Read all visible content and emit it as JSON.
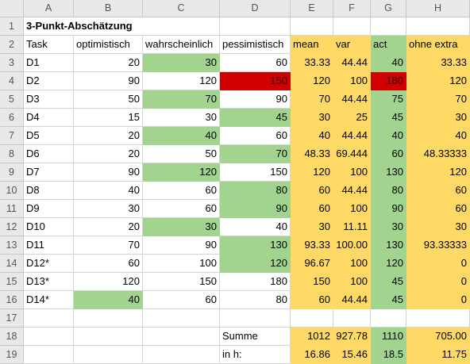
{
  "colors": {
    "green": "#a3d48f",
    "yellow": "#ffd966",
    "red": "#d00000"
  },
  "columns": [
    "A",
    "B",
    "C",
    "D",
    "E",
    "F",
    "G",
    "H"
  ],
  "rows": [
    {
      "n": "1",
      "cells": [
        "3-Punkt-Abschätzung",
        "",
        "",
        "",
        "",
        "",
        "",
        ""
      ]
    },
    {
      "n": "2",
      "cells": [
        "Task",
        "optimistisch",
        "wahrscheinlich",
        "pessimistisch",
        "mean",
        "var",
        "act",
        "ohne extra"
      ]
    },
    {
      "n": "3",
      "cells": [
        "D1",
        "20",
        "30",
        "60",
        "33.33",
        "44.44",
        "40",
        "33.33"
      ]
    },
    {
      "n": "4",
      "cells": [
        "D2",
        "90",
        "120",
        "150",
        "120",
        "100",
        "180",
        "120"
      ]
    },
    {
      "n": "5",
      "cells": [
        "D3",
        "50",
        "70",
        "90",
        "70",
        "44.44",
        "75",
        "70"
      ]
    },
    {
      "n": "6",
      "cells": [
        "D4",
        "15",
        "30",
        "45",
        "30",
        "25",
        "45",
        "30"
      ]
    },
    {
      "n": "7",
      "cells": [
        "D5",
        "20",
        "40",
        "60",
        "40",
        "44.44",
        "40",
        "40"
      ]
    },
    {
      "n": "8",
      "cells": [
        "D6",
        "20",
        "50",
        "70",
        "48.33",
        "69.444",
        "60",
        "48.33333"
      ]
    },
    {
      "n": "9",
      "cells": [
        "D7",
        "90",
        "120",
        "150",
        "120",
        "100",
        "130",
        "120"
      ]
    },
    {
      "n": "10",
      "cells": [
        "D8",
        "40",
        "60",
        "80",
        "60",
        "44.44",
        "80",
        "60"
      ]
    },
    {
      "n": "11",
      "cells": [
        "D9",
        "30",
        "60",
        "90",
        "60",
        "100",
        "90",
        "60"
      ]
    },
    {
      "n": "12",
      "cells": [
        "D10",
        "20",
        "30",
        "40",
        "30",
        "11.11",
        "30",
        "30"
      ]
    },
    {
      "n": "13",
      "cells": [
        "D11",
        "70",
        "90",
        "130",
        "93.33",
        "100.00",
        "130",
        "93.33333"
      ]
    },
    {
      "n": "14",
      "cells": [
        "D12*",
        "60",
        "100",
        "120",
        "96.67",
        "100",
        "120",
        "0"
      ]
    },
    {
      "n": "15",
      "cells": [
        "D13*",
        "120",
        "150",
        "180",
        "150",
        "100",
        "45",
        "0"
      ]
    },
    {
      "n": "16",
      "cells": [
        "D14*",
        "40",
        "60",
        "80",
        "60",
        "44.44",
        "45",
        "0"
      ]
    },
    {
      "n": "17",
      "cells": [
        "",
        "",
        "",
        "",
        "",
        "",
        "",
        ""
      ]
    },
    {
      "n": "18",
      "cells": [
        "",
        "",
        "",
        "Summe",
        "1012",
        "927.78",
        "1110",
        "705.00"
      ]
    },
    {
      "n": "19",
      "cells": [
        "",
        "",
        "",
        "in h:",
        "16.86",
        "15.46",
        "18.5",
        "11.75"
      ]
    }
  ],
  "fills": [
    [
      "",
      "",
      "",
      "",
      "",
      "",
      "",
      ""
    ],
    [
      "",
      "",
      "",
      "",
      "y",
      "y",
      "g",
      "y"
    ],
    [
      "",
      "",
      "g",
      "",
      "y",
      "y",
      "g",
      "y"
    ],
    [
      "",
      "",
      "",
      "r",
      "y",
      "y",
      "r",
      "y"
    ],
    [
      "",
      "",
      "g",
      "",
      "y",
      "y",
      "g",
      "y"
    ],
    [
      "",
      "",
      "",
      "g",
      "y",
      "y",
      "g",
      "y"
    ],
    [
      "",
      "",
      "g",
      "",
      "y",
      "y",
      "g",
      "y"
    ],
    [
      "",
      "",
      "",
      "g",
      "y",
      "y",
      "g",
      "y"
    ],
    [
      "",
      "",
      "g",
      "",
      "y",
      "y",
      "g",
      "y"
    ],
    [
      "",
      "",
      "",
      "g",
      "y",
      "y",
      "g",
      "y"
    ],
    [
      "",
      "",
      "",
      "g",
      "y",
      "y",
      "g",
      "y"
    ],
    [
      "",
      "",
      "g",
      "",
      "y",
      "y",
      "g",
      "y"
    ],
    [
      "",
      "",
      "",
      "g",
      "y",
      "y",
      "g",
      "y"
    ],
    [
      "",
      "",
      "",
      "g",
      "y",
      "y",
      "g",
      "y"
    ],
    [
      "",
      "",
      "",
      "",
      "y",
      "y",
      "g",
      "y"
    ],
    [
      "",
      "g",
      "",
      "",
      "y",
      "y",
      "g",
      "y"
    ],
    [
      "",
      "",
      "",
      "",
      "",
      "",
      "",
      ""
    ],
    [
      "",
      "",
      "",
      "",
      "y",
      "y",
      "g",
      "y"
    ],
    [
      "",
      "",
      "",
      "",
      "y",
      "y",
      "g",
      "y"
    ]
  ]
}
